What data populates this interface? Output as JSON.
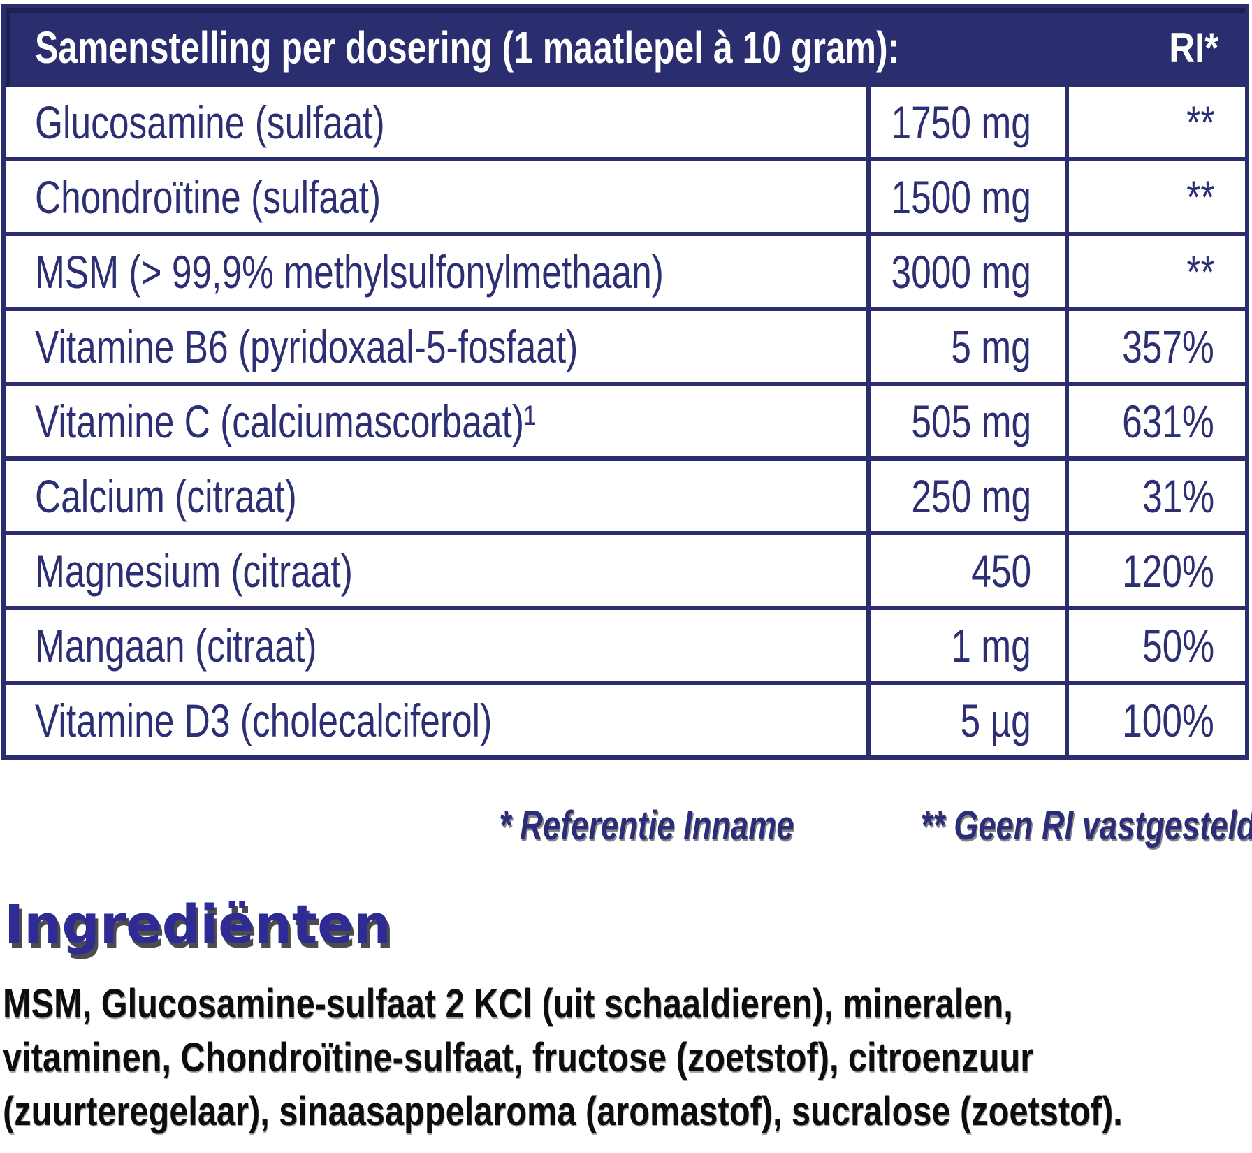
{
  "colors": {
    "brand_navy": "#2a2d6e",
    "heading_blue": "#2e2b94",
    "body_text": "#0d0d0d",
    "table_background": "#ffffff"
  },
  "table": {
    "header": {
      "title": "Samenstelling per dosering (1 maatlepel à 10 gram):",
      "ri_label": "RI*"
    },
    "rows": [
      {
        "label": "Glucosamine (sulfaat)",
        "amount": "1750 mg",
        "ri": "**"
      },
      {
        "label": "Chondroïtine (sulfaat)",
        "amount": "1500 mg",
        "ri": "**"
      },
      {
        "label": "MSM (> 99,9% methylsulfonylmethaan)",
        "amount": "3000 mg",
        "ri": "**"
      },
      {
        "label": "Vitamine B6 (pyridoxaal-5-fosfaat)",
        "amount": "5 mg",
        "ri": "357%"
      },
      {
        "label": "Vitamine C (calciumascorbaat)¹",
        "amount": "505 mg",
        "ri": "631%"
      },
      {
        "label": "Calcium (citraat)",
        "amount": "250 mg",
        "ri": "31%"
      },
      {
        "label": "Magnesium (citraat)",
        "amount": "450",
        "ri": "120%"
      },
      {
        "label": "Mangaan (citraat)",
        "amount": "1 mg",
        "ri": "50%"
      },
      {
        "label": "Vitamine D3 (cholecalciferol)",
        "amount": "5 µg",
        "ri": "100%"
      }
    ]
  },
  "footnotes": {
    "reference_intake": "* Referentie Inname",
    "no_ri": "** Geen RI vastgesteld"
  },
  "ingredients": {
    "heading": "Ingrediënten",
    "lines": [
      "MSM, Glucosamine-sulfaat 2 KCl (uit schaaldieren), mineralen,",
      "vitaminen, Chondroïtine-sulfaat, fructose (zoetstof), citroenzuur",
      "(zuurteregelaar), sinaasappelaroma (aromastof), sucralose (zoetstof)."
    ]
  }
}
